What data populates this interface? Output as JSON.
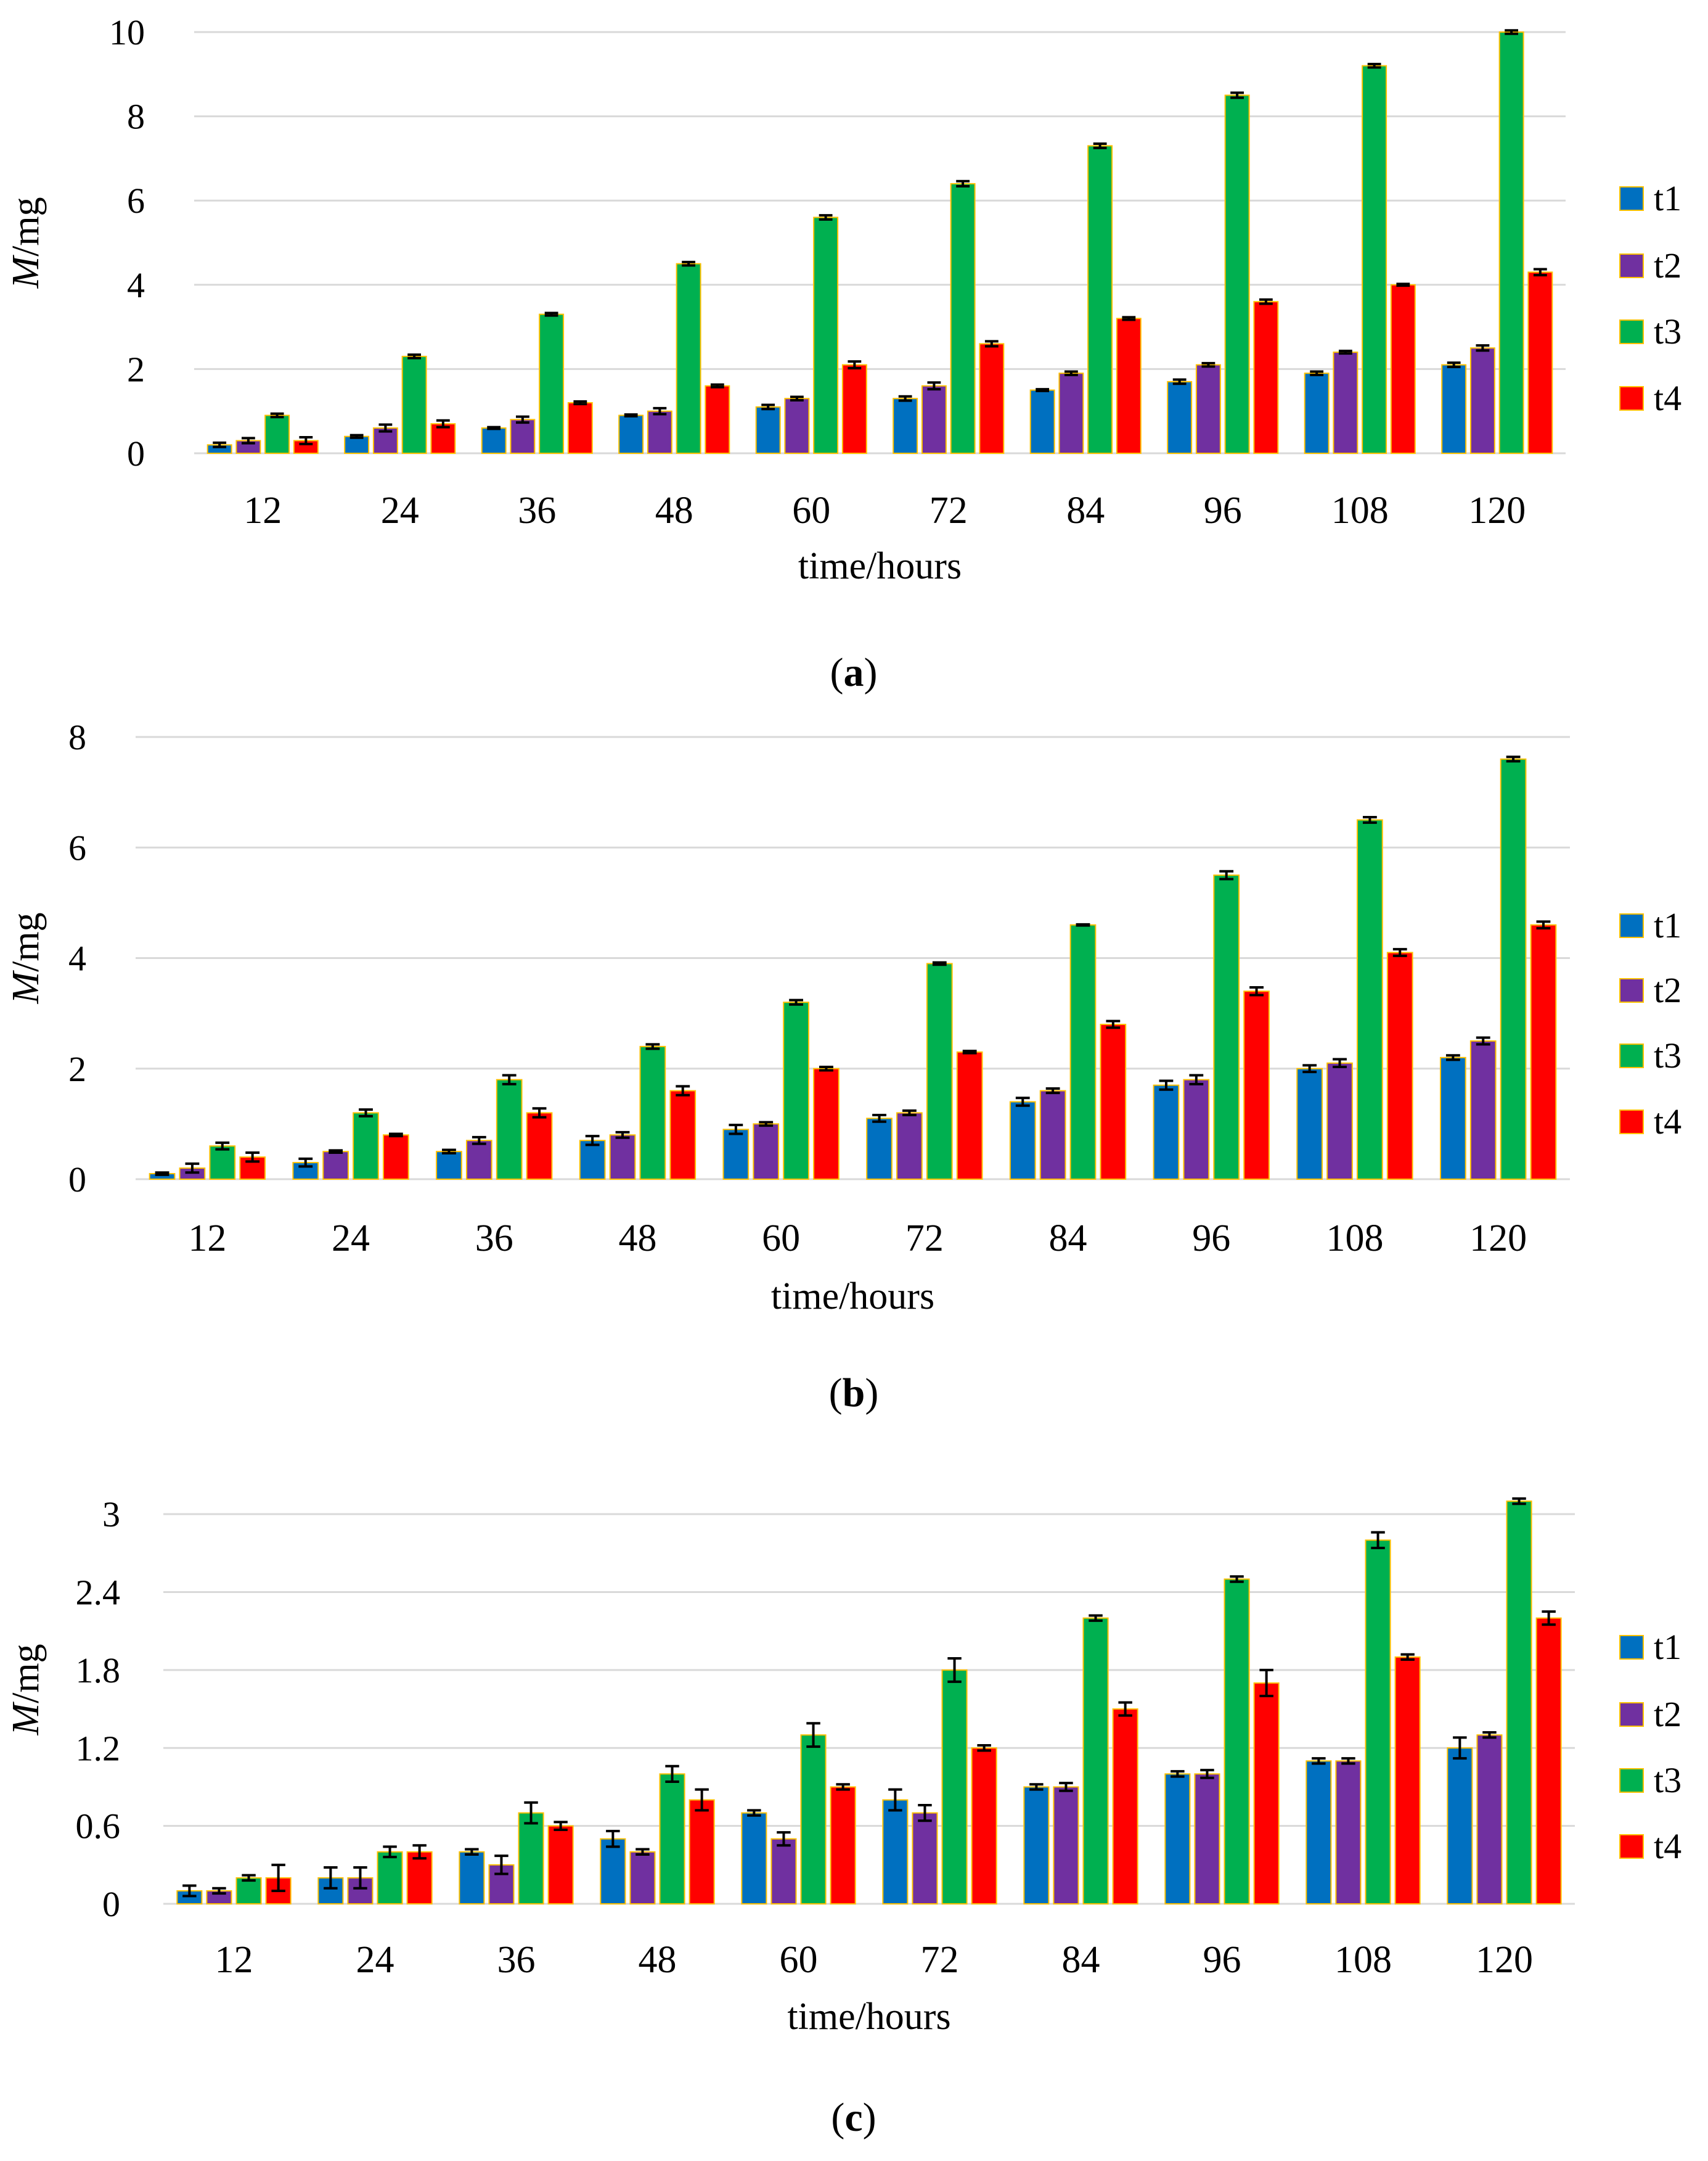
{
  "chart_data": [
    {
      "type": "bar",
      "panel_label": "a",
      "caption_open": "(",
      "caption_close": ")",
      "xlabel": "time/hours",
      "ylabel_italic": "M",
      "ylabel_rest": "/mg",
      "ylim": [
        0,
        10
      ],
      "yticks": [
        "0",
        "2",
        "4",
        "6",
        "8",
        "10"
      ],
      "ytick_values": [
        0,
        2,
        4,
        6,
        8,
        10
      ],
      "grid": true,
      "legend_position": "right",
      "categories": [
        "12",
        "24",
        "36",
        "48",
        "60",
        "72",
        "84",
        "96",
        "108",
        "120"
      ],
      "series": [
        {
          "name": "t1",
          "color": "#0070C0",
          "values": [
            0.2,
            0.4,
            0.6,
            0.9,
            1.1,
            1.3,
            1.5,
            1.7,
            1.9,
            2.1
          ],
          "errors": [
            0.05,
            0.03,
            0.02,
            0.02,
            0.05,
            0.05,
            0.02,
            0.05,
            0.04,
            0.05
          ]
        },
        {
          "name": "t2",
          "color": "#7030A0",
          "values": [
            0.3,
            0.6,
            0.8,
            1.0,
            1.3,
            1.6,
            1.9,
            2.1,
            2.4,
            2.5
          ],
          "errors": [
            0.06,
            0.08,
            0.07,
            0.07,
            0.04,
            0.08,
            0.04,
            0.04,
            0.03,
            0.06
          ]
        },
        {
          "name": "t3",
          "color": "#00B050",
          "values": [
            0.9,
            2.3,
            3.3,
            4.5,
            5.6,
            6.4,
            7.3,
            8.5,
            9.2,
            10.0
          ],
          "errors": [
            0.04,
            0.04,
            0.03,
            0.04,
            0.05,
            0.06,
            0.05,
            0.06,
            0.04,
            0.04
          ]
        },
        {
          "name": "t4",
          "color": "#FF0000",
          "values": [
            0.3,
            0.7,
            1.2,
            1.6,
            2.1,
            2.6,
            3.2,
            3.6,
            4.0,
            4.3
          ],
          "errors": [
            0.08,
            0.08,
            0.03,
            0.03,
            0.08,
            0.06,
            0.03,
            0.05,
            0.02,
            0.07
          ]
        }
      ]
    },
    {
      "type": "bar",
      "panel_label": "b",
      "caption_open": "(",
      "caption_close": ")",
      "xlabel": "time/hours",
      "ylabel_italic": "M",
      "ylabel_rest": "/mg",
      "ylim": [
        0,
        8
      ],
      "yticks": [
        "0",
        "2",
        "4",
        "6",
        "8"
      ],
      "ytick_values": [
        0,
        2,
        4,
        6,
        8
      ],
      "grid": true,
      "legend_position": "right",
      "categories": [
        "12",
        "24",
        "36",
        "48",
        "60",
        "72",
        "84",
        "96",
        "108",
        "120"
      ],
      "series": [
        {
          "name": "t1",
          "color": "#0070C0",
          "values": [
            0.1,
            0.3,
            0.5,
            0.7,
            0.9,
            1.1,
            1.4,
            1.7,
            2.0,
            2.2
          ],
          "errors": [
            0.02,
            0.07,
            0.03,
            0.08,
            0.08,
            0.06,
            0.07,
            0.08,
            0.06,
            0.04
          ]
        },
        {
          "name": "t2",
          "color": "#7030A0",
          "values": [
            0.2,
            0.5,
            0.7,
            0.8,
            1.0,
            1.2,
            1.6,
            1.8,
            2.1,
            2.5
          ],
          "errors": [
            0.08,
            0.02,
            0.06,
            0.05,
            0.03,
            0.04,
            0.04,
            0.08,
            0.07,
            0.06
          ]
        },
        {
          "name": "t3",
          "color": "#00B050",
          "values": [
            0.6,
            1.2,
            1.8,
            2.4,
            3.2,
            3.9,
            4.6,
            5.5,
            6.5,
            7.6
          ],
          "errors": [
            0.06,
            0.06,
            0.08,
            0.04,
            0.04,
            0.02,
            0.01,
            0.07,
            0.05,
            0.04
          ]
        },
        {
          "name": "t4",
          "color": "#FF0000",
          "values": [
            0.4,
            0.8,
            1.2,
            1.6,
            2.0,
            2.3,
            2.8,
            3.4,
            4.1,
            4.6
          ],
          "errors": [
            0.08,
            0.02,
            0.08,
            0.08,
            0.03,
            0.02,
            0.06,
            0.07,
            0.06,
            0.06
          ]
        }
      ]
    },
    {
      "type": "bar",
      "panel_label": "c",
      "caption_open": "(",
      "caption_close": ")",
      "xlabel": "time/hours",
      "ylabel_italic": "M",
      "ylabel_rest": "/mg",
      "ylim": [
        0,
        3.3
      ],
      "yticks": [
        "0",
        "0.6",
        "1.2",
        "1.8",
        "2.4",
        "3"
      ],
      "ytick_values": [
        0,
        0.6,
        1.2,
        1.8,
        2.4,
        3.0
      ],
      "grid": true,
      "legend_position": "right",
      "categories": [
        "12",
        "24",
        "36",
        "48",
        "60",
        "72",
        "84",
        "96",
        "108",
        "120"
      ],
      "series": [
        {
          "name": "t1",
          "color": "#0070C0",
          "values": [
            0.1,
            0.2,
            0.4,
            0.5,
            0.7,
            0.8,
            0.9,
            1.0,
            1.1,
            1.2
          ],
          "errors": [
            0.04,
            0.08,
            0.02,
            0.06,
            0.02,
            0.08,
            0.02,
            0.02,
            0.02,
            0.08
          ]
        },
        {
          "name": "t2",
          "color": "#7030A0",
          "values": [
            0.1,
            0.2,
            0.3,
            0.4,
            0.5,
            0.7,
            0.9,
            1.0,
            1.1,
            1.3
          ],
          "errors": [
            0.02,
            0.08,
            0.07,
            0.02,
            0.05,
            0.06,
            0.03,
            0.03,
            0.02,
            0.02
          ]
        },
        {
          "name": "t3",
          "color": "#00B050",
          "values": [
            0.2,
            0.4,
            0.7,
            1.0,
            1.3,
            1.8,
            2.2,
            2.5,
            2.8,
            3.1
          ],
          "errors": [
            0.02,
            0.04,
            0.08,
            0.06,
            0.09,
            0.09,
            0.02,
            0.02,
            0.06,
            0.02
          ]
        },
        {
          "name": "t4",
          "color": "#FF0000",
          "values": [
            0.2,
            0.4,
            0.6,
            0.8,
            0.9,
            1.2,
            1.5,
            1.7,
            1.9,
            2.2
          ],
          "errors": [
            0.1,
            0.05,
            0.03,
            0.08,
            0.02,
            0.02,
            0.05,
            0.1,
            0.02,
            0.05
          ]
        }
      ]
    }
  ]
}
